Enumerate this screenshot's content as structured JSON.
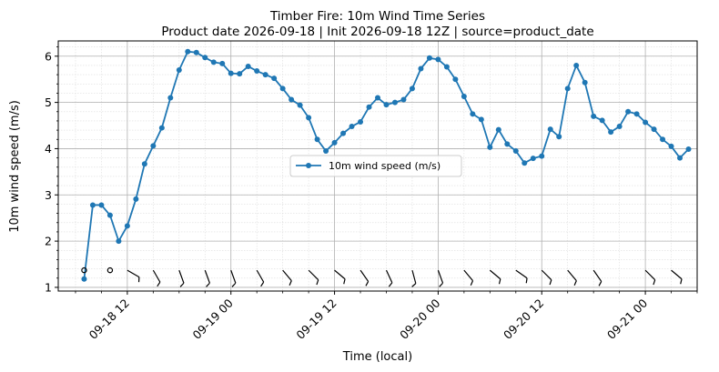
{
  "chart_data": {
    "type": "line",
    "title": "Timber Fire: 10m Wind Time Series",
    "subtitle": "Product date 2026-09-18 | Init 2026-09-18 12Z | source=product_date",
    "xlabel": "Time (local)",
    "ylabel": "10m wind speed (m/s)",
    "xlim": [
      "2026-09-18 04:00",
      "2026-09-21 06:00"
    ],
    "ylim": [
      0.92,
      6.33
    ],
    "x_ticks": [
      "2026-09-18 12:00",
      "2026-09-19 00:00",
      "2026-09-19 12:00",
      "2026-09-20 00:00",
      "2026-09-20 12:00",
      "2026-09-21 00:00"
    ],
    "x_tick_labels": [
      "09-18 12",
      "09-19 00",
      "09-19 12",
      "09-20 00",
      "09-20 12",
      "09-21 00"
    ],
    "y_ticks": [
      1,
      2,
      3,
      4,
      5,
      6
    ],
    "grid": true,
    "legend": {
      "entries": [
        "10m wind speed (m/s)"
      ],
      "placement": "center"
    },
    "colors": {
      "series": "#1f77b4",
      "barbs": "#000000",
      "grid_major": "#b0b0b0",
      "grid_minor": "#dddddd"
    },
    "series": [
      {
        "name": "10m wind speed (m/s)",
        "x": [
          "2026-09-18 07:00",
          "2026-09-18 08:00",
          "2026-09-18 09:00",
          "2026-09-18 10:00",
          "2026-09-18 11:00",
          "2026-09-18 12:00",
          "2026-09-18 13:00",
          "2026-09-18 14:00",
          "2026-09-18 15:00",
          "2026-09-18 16:00",
          "2026-09-18 17:00",
          "2026-09-18 18:00",
          "2026-09-18 19:00",
          "2026-09-18 20:00",
          "2026-09-18 21:00",
          "2026-09-18 22:00",
          "2026-09-18 23:00",
          "2026-09-19 00:00",
          "2026-09-19 01:00",
          "2026-09-19 02:00",
          "2026-09-19 03:00",
          "2026-09-19 04:00",
          "2026-09-19 05:00",
          "2026-09-19 06:00",
          "2026-09-19 07:00",
          "2026-09-19 08:00",
          "2026-09-19 09:00",
          "2026-09-19 10:00",
          "2026-09-19 11:00",
          "2026-09-19 12:00",
          "2026-09-19 13:00",
          "2026-09-19 14:00",
          "2026-09-19 15:00",
          "2026-09-19 16:00",
          "2026-09-19 17:00",
          "2026-09-19 18:00",
          "2026-09-19 19:00",
          "2026-09-19 20:00",
          "2026-09-19 21:00",
          "2026-09-19 22:00",
          "2026-09-19 23:00",
          "2026-09-20 00:00",
          "2026-09-20 01:00",
          "2026-09-20 02:00",
          "2026-09-20 03:00",
          "2026-09-20 04:00",
          "2026-09-20 05:00",
          "2026-09-20 06:00",
          "2026-09-20 07:00",
          "2026-09-20 08:00",
          "2026-09-20 09:00",
          "2026-09-20 10:00",
          "2026-09-20 11:00",
          "2026-09-20 12:00",
          "2026-09-20 13:00",
          "2026-09-20 14:00",
          "2026-09-20 15:00",
          "2026-09-20 16:00",
          "2026-09-20 17:00",
          "2026-09-20 18:00",
          "2026-09-20 19:00",
          "2026-09-20 20:00",
          "2026-09-20 21:00",
          "2026-09-20 22:00",
          "2026-09-20 23:00",
          "2026-09-21 00:00",
          "2026-09-21 01:00",
          "2026-09-21 02:00",
          "2026-09-21 03:00",
          "2026-09-21 04:00",
          "2026-09-21 05:00"
        ],
        "values": [
          1.18,
          2.78,
          2.78,
          2.56,
          2.0,
          2.33,
          2.91,
          3.67,
          4.06,
          4.45,
          5.1,
          5.7,
          6.1,
          6.08,
          5.97,
          5.87,
          5.84,
          5.63,
          5.62,
          5.78,
          5.68,
          5.6,
          5.52,
          5.3,
          5.06,
          4.94,
          4.67,
          4.2,
          3.95,
          4.13,
          4.33,
          4.48,
          4.58,
          4.9,
          5.1,
          4.95,
          5.0,
          5.06,
          5.3,
          5.73,
          5.96,
          5.93,
          5.77,
          5.5,
          5.13,
          4.75,
          4.63,
          4.03,
          4.41,
          4.1,
          3.95,
          3.69,
          3.79,
          3.84,
          4.42,
          4.26,
          5.3,
          5.8,
          5.43,
          4.7,
          4.61,
          4.36,
          4.48,
          4.8,
          4.75,
          4.57,
          4.42,
          4.2,
          4.05,
          3.8,
          3.99
        ]
      }
    ],
    "wind_barbs": {
      "y_level": 1.37,
      "x": [
        "2026-09-18 07:00",
        "2026-09-18 10:00",
        "2026-09-18 12:00",
        "2026-09-18 15:00",
        "2026-09-18 18:00",
        "2026-09-18 21:00",
        "2026-09-19 00:00",
        "2026-09-19 03:00",
        "2026-09-19 06:00",
        "2026-09-19 09:00",
        "2026-09-19 12:00",
        "2026-09-19 15:00",
        "2026-09-19 18:00",
        "2026-09-19 21:00",
        "2026-09-20 00:00",
        "2026-09-20 03:00",
        "2026-09-20 06:00",
        "2026-09-20 09:00",
        "2026-09-20 12:00",
        "2026-09-20 15:00",
        "2026-09-20 18:00",
        "2026-09-21 00:00",
        "2026-09-21 03:00"
      ],
      "kind": [
        "calm",
        "calm",
        "barb",
        "barb",
        "barb",
        "barb",
        "barb",
        "barb",
        "barb",
        "barb",
        "barb",
        "barb",
        "barb",
        "barb",
        "barb",
        "barb",
        "barb",
        "barb",
        "barb",
        "barb",
        "barb",
        "barb",
        "barb"
      ],
      "direction_deg": [
        0,
        0,
        300,
        330,
        340,
        340,
        340,
        330,
        320,
        315,
        310,
        325,
        335,
        345,
        340,
        320,
        310,
        305,
        315,
        320,
        325,
        315,
        310
      ]
    }
  }
}
